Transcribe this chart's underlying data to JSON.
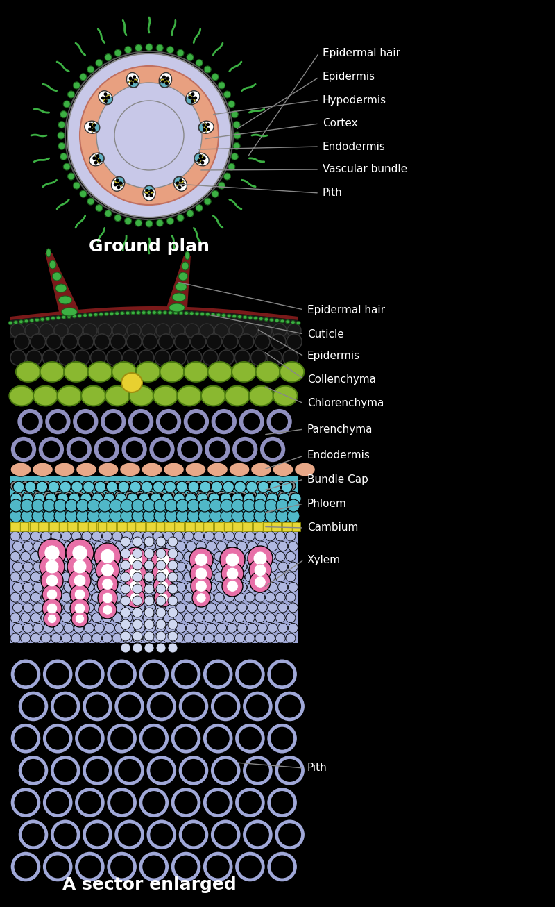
{
  "title_top": "Ground plan",
  "title_bottom": "A sector enlarged",
  "background_color": "#000000",
  "labels_top": [
    "Epidermal hair",
    "Epidermis",
    "Hypodermis",
    "Cortex",
    "Endodermis",
    "Vascular bundle",
    "Pith"
  ],
  "labels_bottom": [
    "Epidermal hair",
    "Cuticle",
    "Epidermis",
    "Collenchyma",
    "Chlorenchyma",
    "Parenchyma",
    "Endodermis",
    "Bundle Cap",
    "Phloem",
    "Cambium",
    "Xylem",
    "Pith"
  ],
  "colors": {
    "background": "#000000",
    "epidermis_green": "#3cb043",
    "hypodermis_lavender": "#c8c8e8",
    "cortex_salmon": "#e8a090",
    "endodermis_teal": "#70b8c0",
    "pith_lavender": "#c8c8e8",
    "collenchyma_darkgreen": "#2d5a1b",
    "chlorenchyma_yellow_green": "#a8c840",
    "parenchyma_lavender": "#b0b8e0",
    "endodermis_pink": "#e8a890",
    "bundle_cap_teal": "#70c8d0",
    "phloem_teal": "#60b8c0",
    "cambium_yellow": "#e8d040",
    "xylem_pink": "#e870a0",
    "pith_bottom": "#b0b8e0",
    "cell_outline": "#000000",
    "hair_green": "#3cb043",
    "cuticle_darkred": "#8b2020",
    "white": "#ffffff",
    "line_color": "#333333"
  }
}
